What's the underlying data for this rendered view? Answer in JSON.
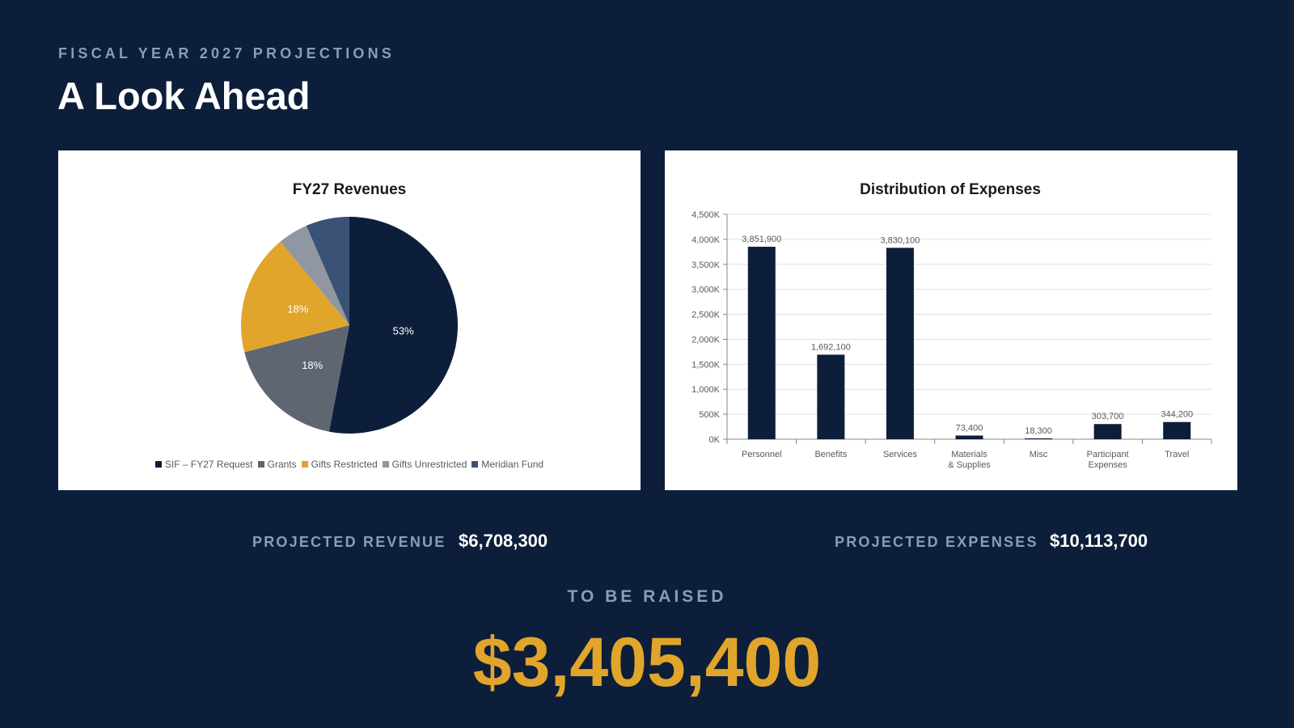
{
  "header": {
    "eyebrow": "FISCAL YEAR 2027 PROJECTIONS",
    "title": "A Look Ahead"
  },
  "summary": {
    "revenue_label": "PROJECTED REVENUE",
    "revenue_value": "$6,708,300",
    "expenses_label": "PROJECTED EXPENSES",
    "expenses_value": "$10,113,700",
    "raise_label": "TO BE RAISED",
    "raise_value": "$3,405,400"
  },
  "chart_data": [
    {
      "type": "pie",
      "title": "FY27 Revenues",
      "legend_position": "bottom",
      "slices": [
        {
          "name": "SIF – FY27 Request",
          "value": 53,
          "label": "53%",
          "color": "#0d1e3a"
        },
        {
          "name": "Grants",
          "value": 18,
          "label": "18%",
          "color": "#5f6672"
        },
        {
          "name": "Gifts Restricted",
          "value": 18,
          "label": "18%",
          "color": "#e0a52a"
        },
        {
          "name": "Gifts Unrestricted",
          "value": 4.5,
          "label": "",
          "color": "#9197a2"
        },
        {
          "name": "Meridian Fund",
          "value": 6.5,
          "label": "",
          "color": "#3a5275"
        }
      ]
    },
    {
      "type": "bar",
      "title": "Distribution of Expenses",
      "categories": [
        [
          "Personnel"
        ],
        [
          "Benefits"
        ],
        [
          "Services"
        ],
        [
          "Materials",
          "& Supplies"
        ],
        [
          "Misc"
        ],
        [
          "Participant",
          "Expenses"
        ],
        [
          "Travel"
        ]
      ],
      "values": [
        3851900,
        1692100,
        3830100,
        73400,
        18300,
        303700,
        344200
      ],
      "value_labels": [
        "3,851,900",
        "1,692,100",
        "3,830,100",
        "73,400",
        "18,300",
        "303,700",
        "344,200"
      ],
      "ylim": [
        0,
        4500000
      ],
      "yticks": [
        0,
        500000,
        1000000,
        1500000,
        2000000,
        2500000,
        3000000,
        3500000,
        4000000,
        4500000
      ],
      "ytick_labels": [
        "0K",
        "500K",
        "1,000K",
        "1,500K",
        "2,000K",
        "2,500K",
        "3,000K",
        "3,500K",
        "4,000K",
        "4,500K"
      ],
      "grid": true,
      "color": "#0d1e3a"
    }
  ]
}
